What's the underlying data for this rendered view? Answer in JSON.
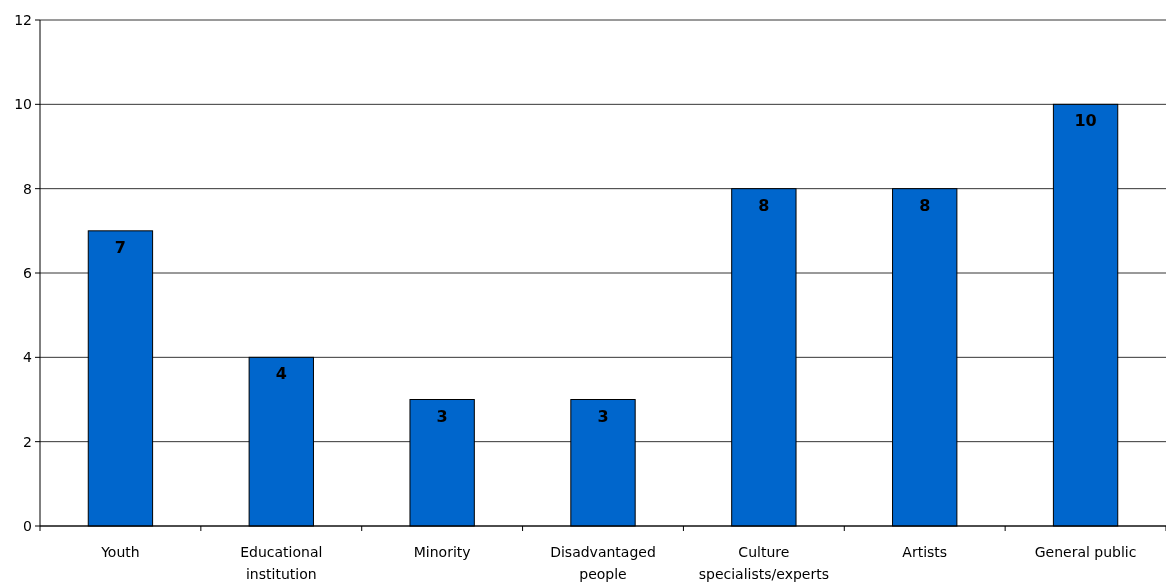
{
  "chart_data": {
    "type": "bar",
    "categories": [
      "Youth",
      "Educational institution",
      "Minority",
      "Disadvantaged people",
      "Culture specialists/experts",
      "Artists",
      "General public"
    ],
    "values": [
      7,
      4,
      3,
      3,
      8,
      8,
      10
    ],
    "color": "#0066cc",
    "ylim": [
      0,
      12
    ],
    "yticks": [
      0,
      2,
      4,
      6,
      8,
      10,
      12
    ],
    "grid": "y",
    "data_labels": true
  }
}
